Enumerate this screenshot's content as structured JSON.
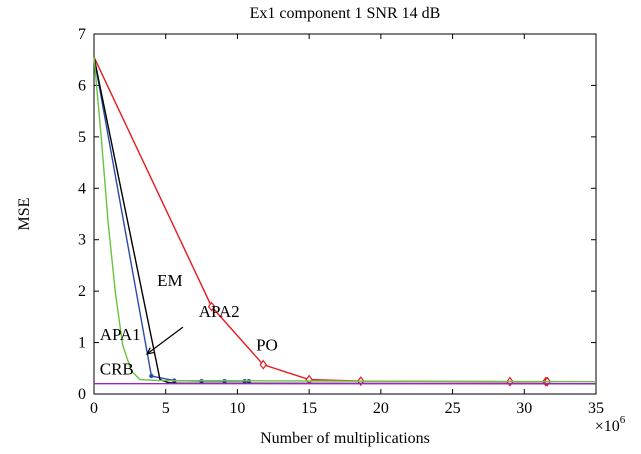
{
  "chart_data": {
    "type": "line",
    "title": "Ex1 component 1 SNR 14 dB",
    "xlabel": "Number of multiplications",
    "ylabel": "MSE",
    "x_multiplier_label": "×10",
    "x_multiplier_exp": "6",
    "xlim": [
      0,
      35
    ],
    "ylim": [
      0,
      7
    ],
    "xticks": [
      0,
      5,
      10,
      15,
      20,
      25,
      30,
      35
    ],
    "yticks": [
      0,
      1,
      2,
      3,
      4,
      5,
      6,
      7
    ],
    "grid": false,
    "legend": "none",
    "series": [
      {
        "name": "PO",
        "color": "#e8191e",
        "marker": "diamond",
        "x": [
          0,
          8.2,
          11.8,
          15.0,
          18.6,
          29.0,
          31.5,
          31.6
        ],
        "y": [
          6.55,
          1.7,
          0.57,
          0.28,
          0.25,
          0.24,
          0.24,
          0.24
        ]
      },
      {
        "name": "APA2",
        "color": "#2b4ba8",
        "marker": "dot",
        "x": [
          0,
          4.0,
          5.6,
          7.5,
          9.1,
          10.5,
          10.8
        ],
        "y": [
          6.55,
          0.35,
          0.26,
          0.25,
          0.25,
          0.25,
          0.25
        ]
      },
      {
        "name": "EM",
        "color": "#000000",
        "marker": "none",
        "x": [
          0,
          4.6,
          5.2,
          5.8,
          35
        ],
        "y": [
          6.55,
          0.28,
          0.22,
          0.21,
          0.2
        ]
      },
      {
        "name": "APA1",
        "color": "#6ac33d",
        "marker": "none",
        "x": [
          0,
          0.5,
          1.0,
          1.5,
          2.0,
          2.6,
          3.2,
          4.5,
          35
        ],
        "y": [
          6.55,
          5.0,
          3.3,
          1.95,
          0.95,
          0.45,
          0.28,
          0.26,
          0.24
        ]
      },
      {
        "name": "CRB",
        "color": "#a020d0",
        "marker": "none",
        "x": [
          0,
          35
        ],
        "y": [
          0.2,
          0.2
        ]
      }
    ],
    "annotations": [
      {
        "label": "EM",
        "x": 4.4,
        "y": 2.1
      },
      {
        "label": "APA2",
        "x": 7.3,
        "y": 1.5
      },
      {
        "label": "APA1",
        "x": 0.4,
        "y": 1.05
      },
      {
        "label": "PO",
        "x": 11.3,
        "y": 0.85
      },
      {
        "label": "CRB",
        "x": 0.4,
        "y": 0.38
      }
    ],
    "arrow": {
      "label": "APA2",
      "from": [
        6.2,
        1.3
      ],
      "to": [
        3.7,
        0.78
      ]
    }
  }
}
